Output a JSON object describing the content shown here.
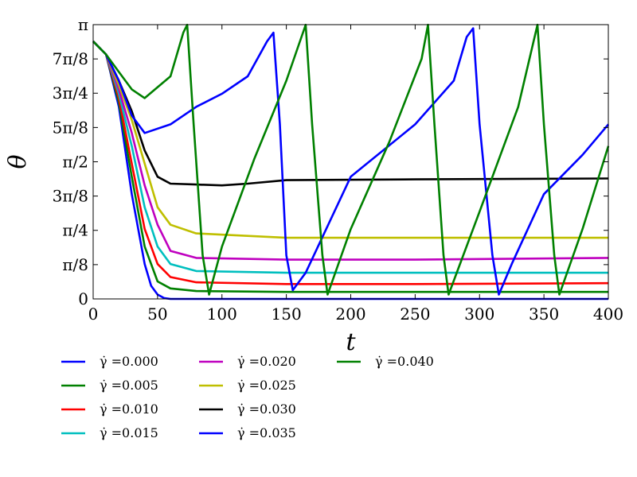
{
  "chart_data": {
    "type": "line",
    "xlabel": "t",
    "ylabel": "θ",
    "xlim": [
      0,
      400
    ],
    "ylim": [
      0,
      3.14159
    ],
    "x_ticks": [
      {
        "value": 0,
        "label": "0"
      },
      {
        "value": 50,
        "label": "50"
      },
      {
        "value": 100,
        "label": "100"
      },
      {
        "value": 150,
        "label": "150"
      },
      {
        "value": 200,
        "label": "200"
      },
      {
        "value": 250,
        "label": "250"
      },
      {
        "value": 300,
        "label": "300"
      },
      {
        "value": 350,
        "label": "350"
      },
      {
        "value": 400,
        "label": "400"
      }
    ],
    "y_ticks": [
      {
        "value": 0,
        "label": "0"
      },
      {
        "value": 0.3927,
        "label": "π/8"
      },
      {
        "value": 0.7854,
        "label": "π/4"
      },
      {
        "value": 1.1781,
        "label": "3π/8"
      },
      {
        "value": 1.5708,
        "label": "π/2"
      },
      {
        "value": 1.9635,
        "label": "5π/8"
      },
      {
        "value": 2.3562,
        "label": "3π/4"
      },
      {
        "value": 2.7489,
        "label": "7π/8"
      },
      {
        "value": 3.1416,
        "label": "π"
      }
    ],
    "grid": false,
    "legend_position": "bottom",
    "series": [
      {
        "label": "γ̇ =0.000",
        "color": "#0000ff",
        "points": [
          [
            0,
            2.95
          ],
          [
            10,
            2.8
          ],
          [
            20,
            2.2
          ],
          [
            30,
            1.2
          ],
          [
            40,
            0.4
          ],
          [
            45,
            0.15
          ],
          [
            50,
            0.05
          ],
          [
            55,
            0.01
          ],
          [
            60,
            0.0
          ],
          [
            400,
            0.0
          ]
        ]
      },
      {
        "label": "γ̇ =0.005",
        "color": "#008000",
        "points": [
          [
            0,
            2.95
          ],
          [
            10,
            2.8
          ],
          [
            20,
            2.25
          ],
          [
            30,
            1.4
          ],
          [
            40,
            0.6
          ],
          [
            50,
            0.2
          ],
          [
            60,
            0.12
          ],
          [
            80,
            0.09
          ],
          [
            150,
            0.08
          ],
          [
            250,
            0.08
          ],
          [
            400,
            0.08
          ]
        ]
      },
      {
        "label": "γ̇ =0.010",
        "color": "#ff0000",
        "points": [
          [
            0,
            2.95
          ],
          [
            10,
            2.8
          ],
          [
            20,
            2.3
          ],
          [
            30,
            1.55
          ],
          [
            40,
            0.8
          ],
          [
            50,
            0.4
          ],
          [
            60,
            0.25
          ],
          [
            80,
            0.19
          ],
          [
            150,
            0.17
          ],
          [
            250,
            0.17
          ],
          [
            400,
            0.18
          ]
        ]
      },
      {
        "label": "γ̇ =0.015",
        "color": "#00bfbf",
        "points": [
          [
            0,
            2.95
          ],
          [
            10,
            2.8
          ],
          [
            20,
            2.35
          ],
          [
            30,
            1.75
          ],
          [
            40,
            1.05
          ],
          [
            50,
            0.6
          ],
          [
            60,
            0.4
          ],
          [
            80,
            0.32
          ],
          [
            150,
            0.3
          ],
          [
            250,
            0.3
          ],
          [
            400,
            0.3
          ]
        ]
      },
      {
        "label": "γ̇ =0.020",
        "color": "#bf00bf",
        "points": [
          [
            0,
            2.95
          ],
          [
            10,
            2.8
          ],
          [
            20,
            2.4
          ],
          [
            30,
            1.9
          ],
          [
            40,
            1.3
          ],
          [
            50,
            0.85
          ],
          [
            60,
            0.55
          ],
          [
            80,
            0.47
          ],
          [
            150,
            0.45
          ],
          [
            250,
            0.45
          ],
          [
            400,
            0.47
          ]
        ]
      },
      {
        "label": "γ̇ =0.025",
        "color": "#bfbf00",
        "points": [
          [
            0,
            2.95
          ],
          [
            10,
            2.8
          ],
          [
            20,
            2.45
          ],
          [
            30,
            2.05
          ],
          [
            40,
            1.55
          ],
          [
            50,
            1.05
          ],
          [
            60,
            0.85
          ],
          [
            80,
            0.75
          ],
          [
            150,
            0.7
          ],
          [
            250,
            0.7
          ],
          [
            400,
            0.7
          ]
        ]
      },
      {
        "label": "γ̇ =0.030",
        "color": "#000000",
        "points": [
          [
            0,
            2.95
          ],
          [
            10,
            2.8
          ],
          [
            20,
            2.5
          ],
          [
            30,
            2.15
          ],
          [
            40,
            1.7
          ],
          [
            50,
            1.4
          ],
          [
            60,
            1.32
          ],
          [
            80,
            1.31
          ],
          [
            100,
            1.3
          ],
          [
            120,
            1.32
          ],
          [
            150,
            1.36
          ],
          [
            250,
            1.37
          ],
          [
            400,
            1.38
          ]
        ]
      },
      {
        "label": "γ̇ =0.035",
        "color": "#0000ff",
        "points": [
          [
            0,
            2.95
          ],
          [
            10,
            2.8
          ],
          [
            20,
            2.5
          ],
          [
            30,
            2.1
          ],
          [
            40,
            1.9
          ],
          [
            60,
            2.0
          ],
          [
            80,
            2.2
          ],
          [
            100,
            2.35
          ],
          [
            120,
            2.55
          ],
          [
            135,
            2.95
          ],
          [
            140,
            3.05
          ],
          [
            145,
            2.0
          ],
          [
            150,
            0.5
          ],
          [
            155,
            0.1
          ],
          [
            165,
            0.3
          ],
          [
            200,
            1.4
          ],
          [
            250,
            2.0
          ],
          [
            280,
            2.5
          ],
          [
            290,
            3.0
          ],
          [
            295,
            3.1
          ],
          [
            300,
            2.0
          ],
          [
            310,
            0.5
          ],
          [
            315,
            0.05
          ],
          [
            325,
            0.4
          ],
          [
            350,
            1.2
          ],
          [
            380,
            1.65
          ],
          [
            400,
            2.0
          ]
        ]
      },
      {
        "label": "γ̇ =0.040",
        "color": "#008000",
        "points": [
          [
            0,
            2.95
          ],
          [
            10,
            2.8
          ],
          [
            20,
            2.6
          ],
          [
            30,
            2.4
          ],
          [
            40,
            2.3
          ],
          [
            60,
            2.55
          ],
          [
            70,
            3.05
          ],
          [
            73,
            3.14
          ],
          [
            78,
            2.0
          ],
          [
            85,
            0.5
          ],
          [
            90,
            0.05
          ],
          [
            100,
            0.6
          ],
          [
            125,
            1.6
          ],
          [
            150,
            2.5
          ],
          [
            165,
            3.14
          ],
          [
            170,
            2.0
          ],
          [
            178,
            0.5
          ],
          [
            182,
            0.05
          ],
          [
            200,
            0.8
          ],
          [
            230,
            1.8
          ],
          [
            255,
            2.75
          ],
          [
            260,
            3.14
          ],
          [
            265,
            2.0
          ],
          [
            272,
            0.5
          ],
          [
            276,
            0.05
          ],
          [
            300,
            1.0
          ],
          [
            330,
            2.2
          ],
          [
            345,
            3.14
          ],
          [
            350,
            2.0
          ],
          [
            358,
            0.5
          ],
          [
            362,
            0.05
          ],
          [
            380,
            0.8
          ],
          [
            400,
            1.75
          ]
        ]
      }
    ]
  }
}
